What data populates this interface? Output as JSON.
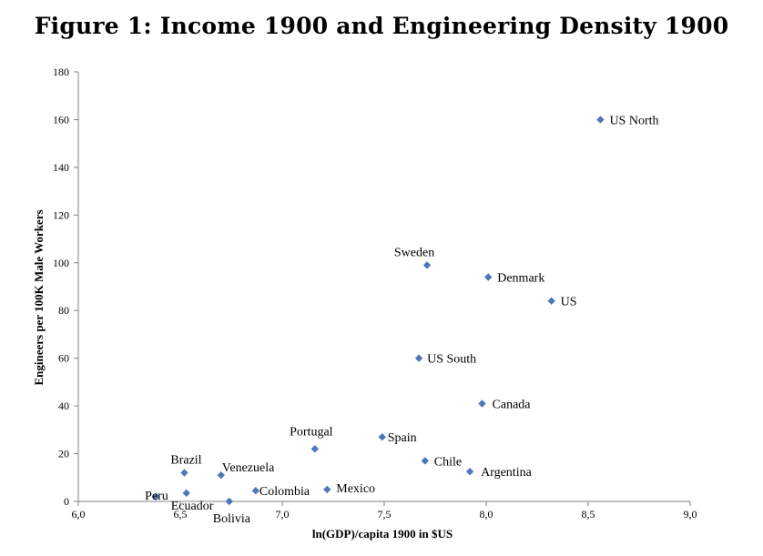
{
  "chart_data": {
    "type": "scatter",
    "title": "Figure 1: Income 1900 and Engineering Density 1900",
    "xlabel": "ln(GDP)/capita 1900 in  $US",
    "ylabel": "Engineers per 100K Male Workers",
    "xlim": [
      6.0,
      9.0
    ],
    "ylim": [
      0,
      180
    ],
    "x_ticks": [
      "6,0",
      "6,5",
      "7,0",
      "7,5",
      "8,0",
      "8,5",
      "9,0"
    ],
    "y_ticks": [
      "0",
      "20",
      "40",
      "60",
      "80",
      "100",
      "120",
      "140",
      "160",
      "180"
    ],
    "grid": false,
    "marker_color": "#4f77b8",
    "points": [
      {
        "label": "US North",
        "x": 8.56,
        "y": 160
      },
      {
        "label": "Sweden",
        "x": 7.71,
        "y": 99
      },
      {
        "label": "Denmark",
        "x": 8.01,
        "y": 94
      },
      {
        "label": "US",
        "x": 8.32,
        "y": 84
      },
      {
        "label": "US South",
        "x": 7.67,
        "y": 60
      },
      {
        "label": "Canada",
        "x": 7.98,
        "y": 41
      },
      {
        "label": "Portugal",
        "x": 7.16,
        "y": 22
      },
      {
        "label": "Spain",
        "x": 7.49,
        "y": 27
      },
      {
        "label": "Chile",
        "x": 7.7,
        "y": 17
      },
      {
        "label": "Argentina",
        "x": 7.92,
        "y": 12.5
      },
      {
        "label": "Brazil",
        "x": 6.52,
        "y": 12
      },
      {
        "label": "Venezuela",
        "x": 6.7,
        "y": 11
      },
      {
        "label": "Colombia",
        "x": 6.87,
        "y": 4.5
      },
      {
        "label": "Mexico",
        "x": 7.22,
        "y": 5
      },
      {
        "label": "Peru",
        "x": 6.38,
        "y": 2
      },
      {
        "label": "Ecuador",
        "x": 6.53,
        "y": 3.5
      },
      {
        "label": "Bolivia",
        "x": 6.74,
        "y": 0
      }
    ]
  }
}
